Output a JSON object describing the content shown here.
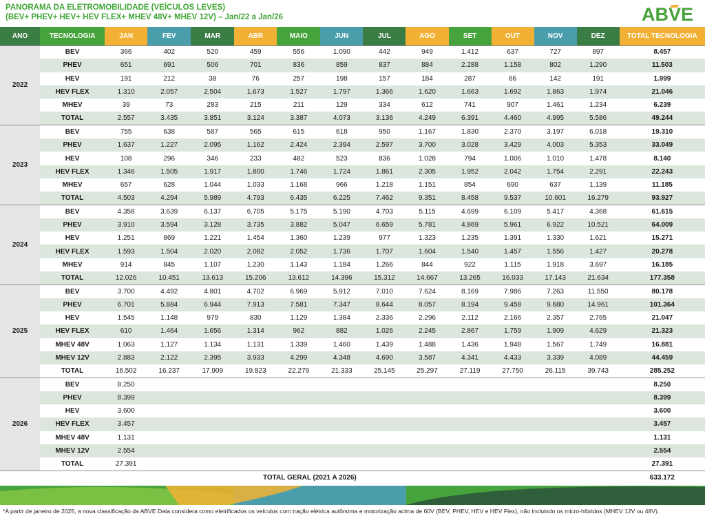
{
  "header": {
    "title_line1": "PANORAMA DA ELETROMOBILIDADE (VEÍCULOS LEVES)",
    "title_line2": "(BEV+ PHEV+ HEV+ HEV FLEX+ MHEV 48V+ MHEV 12V) – Jan/22 a Jan/26",
    "logo_text": "ABVE"
  },
  "colors": {
    "dark_green": "#3a7d44",
    "mid_green": "#47a33b",
    "orange": "#f2b134",
    "teal": "#4a9eab",
    "light_green": "#5cb85c",
    "total_col": "#f2b134"
  },
  "columns": [
    "ANO",
    "TECNOLOGIA",
    "JAN",
    "FEV",
    "MAR",
    "ABR",
    "MAIO",
    "JUN",
    "JUL",
    "AGO",
    "SET",
    "OUT",
    "NOV",
    "DEZ",
    "TOTAL TECNOLOGIA"
  ],
  "years": [
    {
      "year": "2022",
      "rows": [
        {
          "tech": "BEV",
          "values": [
            "366",
            "402",
            "520",
            "459",
            "556",
            "1.090",
            "442",
            "949",
            "1.412",
            "637",
            "727",
            "897"
          ],
          "total": "8.457"
        },
        {
          "tech": "PHEV",
          "values": [
            "651",
            "691",
            "506",
            "701",
            "836",
            "859",
            "837",
            "884",
            "2.288",
            "1.158",
            "802",
            "1.290"
          ],
          "total": "11.503"
        },
        {
          "tech": "HEV",
          "values": [
            "191",
            "212",
            "38",
            "76",
            "257",
            "198",
            "157",
            "184",
            "287",
            "66",
            "142",
            "191"
          ],
          "total": "1.999"
        },
        {
          "tech": "HEV FLEX",
          "values": [
            "1.310",
            "2.057",
            "2.504",
            "1.673",
            "1.527",
            "1.797",
            "1.366",
            "1.620",
            "1.663",
            "1.692",
            "1.863",
            "1.974"
          ],
          "total": "21.046"
        },
        {
          "tech": "MHEV",
          "values": [
            "39",
            "73",
            "283",
            "215",
            "211",
            "129",
            "334",
            "612",
            "741",
            "907",
            "1.461",
            "1.234"
          ],
          "total": "6.239"
        },
        {
          "tech": "TOTAL",
          "values": [
            "2.557",
            "3.435",
            "3.851",
            "3.124",
            "3.387",
            "4.073",
            "3.136",
            "4.249",
            "6.391",
            "4.460",
            "4.995",
            "5.586"
          ],
          "total": "49.244"
        }
      ]
    },
    {
      "year": "2023",
      "rows": [
        {
          "tech": "BEV",
          "values": [
            "755",
            "638",
            "587",
            "565",
            "615",
            "618",
            "950",
            "1.167",
            "1.830",
            "2.370",
            "3.197",
            "6.018"
          ],
          "total": "19.310"
        },
        {
          "tech": "PHEV",
          "values": [
            "1.637",
            "1.227",
            "2.095",
            "1.162",
            "2.424",
            "2.394",
            "2.597",
            "3.700",
            "3.028",
            "3.429",
            "4.003",
            "5.353"
          ],
          "total": "33.049"
        },
        {
          "tech": "HEV",
          "values": [
            "108",
            "296",
            "346",
            "233",
            "482",
            "523",
            "836",
            "1.028",
            "794",
            "1.006",
            "1.010",
            "1.478"
          ],
          "total": "8.140"
        },
        {
          "tech": "HEV FLEX",
          "values": [
            "1.346",
            "1.505",
            "1.917",
            "1.800",
            "1.746",
            "1.724",
            "1.861",
            "2.305",
            "1.952",
            "2.042",
            "1.754",
            "2.291"
          ],
          "total": "22.243"
        },
        {
          "tech": "MHEV",
          "values": [
            "657",
            "628",
            "1.044",
            "1.033",
            "1.168",
            "966",
            "1.218",
            "1.151",
            "854",
            "690",
            "637",
            "1.139"
          ],
          "total": "11.185"
        },
        {
          "tech": "TOTAL",
          "values": [
            "4.503",
            "4.294",
            "5.989",
            "4.793",
            "6.435",
            "6.225",
            "7.462",
            "9.351",
            "8.458",
            "9.537",
            "10.601",
            "16.279"
          ],
          "total": "93.927"
        }
      ]
    },
    {
      "year": "2024",
      "rows": [
        {
          "tech": "BEV",
          "values": [
            "4.358",
            "3.639",
            "6.137",
            "6.705",
            "5.175",
            "5.190",
            "4.703",
            "5.115",
            "4.699",
            "6.109",
            "5.417",
            "4.368"
          ],
          "total": "61.615"
        },
        {
          "tech": "PHEV",
          "values": [
            "3.910",
            "3.594",
            "3.128",
            "3.735",
            "3.882",
            "5.047",
            "6.659",
            "5.781",
            "4.869",
            "5.961",
            "6.922",
            "10.521"
          ],
          "total": "64.009"
        },
        {
          "tech": "HEV",
          "values": [
            "1.251",
            "869",
            "1.221",
            "1.454",
            "1.360",
            "1.239",
            "977",
            "1.323",
            "1.235",
            "1.391",
            "1.330",
            "1.621"
          ],
          "total": "15.271"
        },
        {
          "tech": "HEV FLEX",
          "values": [
            "1.593",
            "1.504",
            "2.020",
            "2.082",
            "2.052",
            "1.736",
            "1.707",
            "1.604",
            "1.540",
            "1.457",
            "1.556",
            "1.427"
          ],
          "total": "20.278"
        },
        {
          "tech": "MHEV",
          "values": [
            "914",
            "845",
            "1.107",
            "1.230",
            "1.143",
            "1.184",
            "1.266",
            "844",
            "922",
            "1.115",
            "1.918",
            "3.697"
          ],
          "total": "16.185"
        },
        {
          "tech": "TOTAL",
          "values": [
            "12.026",
            "10.451",
            "13.613",
            "15.206",
            "13.612",
            "14.396",
            "15.312",
            "14.667",
            "13.265",
            "16.033",
            "17.143",
            "21.634"
          ],
          "total": "177.358"
        }
      ]
    },
    {
      "year": "2025",
      "rows": [
        {
          "tech": "BEV",
          "values": [
            "3.700",
            "4.492",
            "4.801",
            "4.702",
            "6.969",
            "5.912",
            "7.010",
            "7.624",
            "8.169",
            "7.986",
            "7.263",
            "11.550"
          ],
          "total": "80.178"
        },
        {
          "tech": "PHEV",
          "values": [
            "6.701",
            "5.884",
            "6.944",
            "7.913",
            "7.581",
            "7.347",
            "8.644",
            "8.057",
            "8.194",
            "9.458",
            "9.680",
            "14.961"
          ],
          "total": "101.364"
        },
        {
          "tech": "HEV",
          "values": [
            "1.545",
            "1.148",
            "979",
            "830",
            "1.129",
            "1.384",
            "2.336",
            "2.296",
            "2.112",
            "2.166",
            "2.357",
            "2.765"
          ],
          "total": "21.047"
        },
        {
          "tech": "HEV FLEX",
          "values": [
            "610",
            "1.464",
            "1.656",
            "1.314",
            "962",
            "882",
            "1.026",
            "2.245",
            "2.867",
            "1.759",
            "1.909",
            "4.629"
          ],
          "total": "21.323"
        },
        {
          "tech": "MHEV 48V",
          "values": [
            "1.063",
            "1.127",
            "1.134",
            "1.131",
            "1.339",
            "1.460",
            "1.439",
            "1.488",
            "1.436",
            "1.948",
            "1.567",
            "1.749"
          ],
          "total": "16.881"
        },
        {
          "tech": "MHEV 12V",
          "values": [
            "2.883",
            "2.122",
            "2.395",
            "3.933",
            "4.299",
            "4.348",
            "4.690",
            "3.587",
            "4.341",
            "4.433",
            "3.339",
            "4.089"
          ],
          "total": "44.459"
        },
        {
          "tech": "TOTAL",
          "values": [
            "16.502",
            "16.237",
            "17.909",
            "19.823",
            "22.279",
            "21.333",
            "25.145",
            "25.297",
            "27.119",
            "27.750",
            "26.115",
            "39.743"
          ],
          "total": "285.252"
        }
      ]
    },
    {
      "year": "2026",
      "rows": [
        {
          "tech": "BEV",
          "values": [
            "8.250",
            "",
            "",
            "",
            "",
            "",
            "",
            "",
            "",
            "",
            "",
            ""
          ],
          "total": "8.250"
        },
        {
          "tech": "PHEV",
          "values": [
            "8.399",
            "",
            "",
            "",
            "",
            "",
            "",
            "",
            "",
            "",
            "",
            ""
          ],
          "total": "8.399"
        },
        {
          "tech": "HEV",
          "values": [
            "3.600",
            "",
            "",
            "",
            "",
            "",
            "",
            "",
            "",
            "",
            "",
            ""
          ],
          "total": "3.600"
        },
        {
          "tech": "HEV FLEX",
          "values": [
            "3.457",
            "",
            "",
            "",
            "",
            "",
            "",
            "",
            "",
            "",
            "",
            ""
          ],
          "total": "3.457"
        },
        {
          "tech": "MHEV 48V",
          "values": [
            "1.131",
            "",
            "",
            "",
            "",
            "",
            "",
            "",
            "",
            "",
            "",
            ""
          ],
          "total": "1.131"
        },
        {
          "tech": "MHEV 12V",
          "values": [
            "2.554",
            "",
            "",
            "",
            "",
            "",
            "",
            "",
            "",
            "",
            "",
            ""
          ],
          "total": "2.554"
        },
        {
          "tech": "TOTAL",
          "values": [
            "27.391",
            "",
            "",
            "",
            "",
            "",
            "",
            "",
            "",
            "",
            "",
            ""
          ],
          "total": "27.391"
        }
      ]
    }
  ],
  "grand_total": {
    "label": "TOTAL GERAL (2021 A 2026)",
    "value": "633.172"
  },
  "footnote": "*A partir de janeiro de 2025, a nova classificação da ABVE Data considera como eletrificados os veículos com tração elétrica autônoma e motorização acima de 60V (BEV, PHEV, HEV e HEV Flex), não incluindo os micro-híbridos (MHEV 12V ou 48V)."
}
